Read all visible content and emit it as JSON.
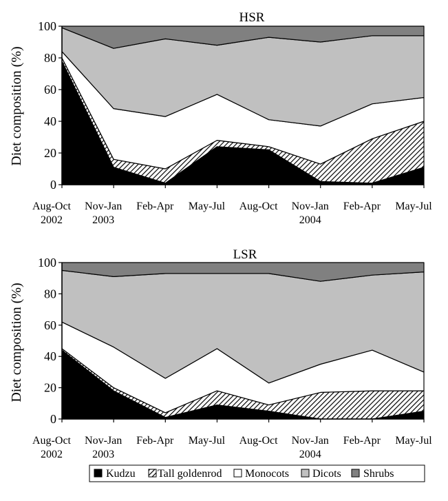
{
  "colors": {
    "kudzu": "#000000",
    "tall_goldenrod": "hatched",
    "monocots": "#ffffff",
    "dicots": "#c0c0c0",
    "shrubs": "#808080"
  },
  "legend": {
    "placement": "bottom",
    "items": [
      "Kudzu",
      "Tall goldenrod",
      "Monocots",
      "Dicots",
      "Shrubs"
    ]
  },
  "chart_data": [
    {
      "type": "area",
      "stacked": true,
      "title": "HSR",
      "ylabel": "Diet composition (%)",
      "ylim": [
        0,
        100
      ],
      "yticks": [
        "0",
        "20",
        "40",
        "60",
        "80",
        "100"
      ],
      "categories": [
        [
          "Aug-Oct",
          "2002"
        ],
        [
          "Nov-Jan",
          "2003"
        ],
        [
          "Feb-Apr",
          ""
        ],
        [
          "May-Jul",
          ""
        ],
        [
          "Aug-Oct",
          ""
        ],
        [
          "Nov-Jan",
          "2004"
        ],
        [
          "Feb-Apr",
          ""
        ],
        [
          "May-Jul",
          ""
        ]
      ],
      "series": [
        {
          "name": "Kudzu",
          "values": [
            78,
            11,
            1,
            24,
            22,
            2,
            1,
            11
          ]
        },
        {
          "name": "Tall goldenrod",
          "values": [
            2,
            5,
            9,
            4,
            2,
            11,
            28,
            29
          ]
        },
        {
          "name": "Monocots",
          "values": [
            4,
            32,
            33,
            29,
            17,
            24,
            22,
            15
          ]
        },
        {
          "name": "Dicots",
          "values": [
            15,
            38,
            49,
            31,
            52,
            53,
            43,
            39
          ]
        },
        {
          "name": "Shrubs",
          "values": [
            1,
            14,
            8,
            12,
            7,
            10,
            6,
            6
          ]
        }
      ]
    },
    {
      "type": "area",
      "stacked": true,
      "title": "LSR",
      "ylabel": "Diet composition (%)",
      "ylim": [
        0,
        100
      ],
      "yticks": [
        "0",
        "20",
        "40",
        "60",
        "80",
        "100"
      ],
      "categories": [
        [
          "Aug-Oct",
          "2002"
        ],
        [
          "Nov-Jan",
          "2003"
        ],
        [
          "Feb-Apr",
          ""
        ],
        [
          "May-Jul",
          ""
        ],
        [
          "Aug-Oct",
          ""
        ],
        [
          "Nov-Jan",
          "2004"
        ],
        [
          "Feb-Apr",
          ""
        ],
        [
          "May-Jul",
          ""
        ]
      ],
      "series": [
        {
          "name": "Kudzu",
          "values": [
            44,
            18,
            1,
            9,
            5,
            0,
            0,
            5
          ]
        },
        {
          "name": "Tall goldenrod",
          "values": [
            1,
            2,
            3,
            9,
            4,
            17,
            18,
            13
          ]
        },
        {
          "name": "Monocots",
          "values": [
            17,
            26,
            22,
            27,
            14,
            18,
            26,
            12
          ]
        },
        {
          "name": "Dicots",
          "values": [
            33,
            45,
            67,
            48,
            70,
            53,
            48,
            64
          ]
        },
        {
          "name": "Shrubs",
          "values": [
            5,
            9,
            7,
            7,
            7,
            12,
            8,
            6
          ]
        }
      ]
    }
  ]
}
